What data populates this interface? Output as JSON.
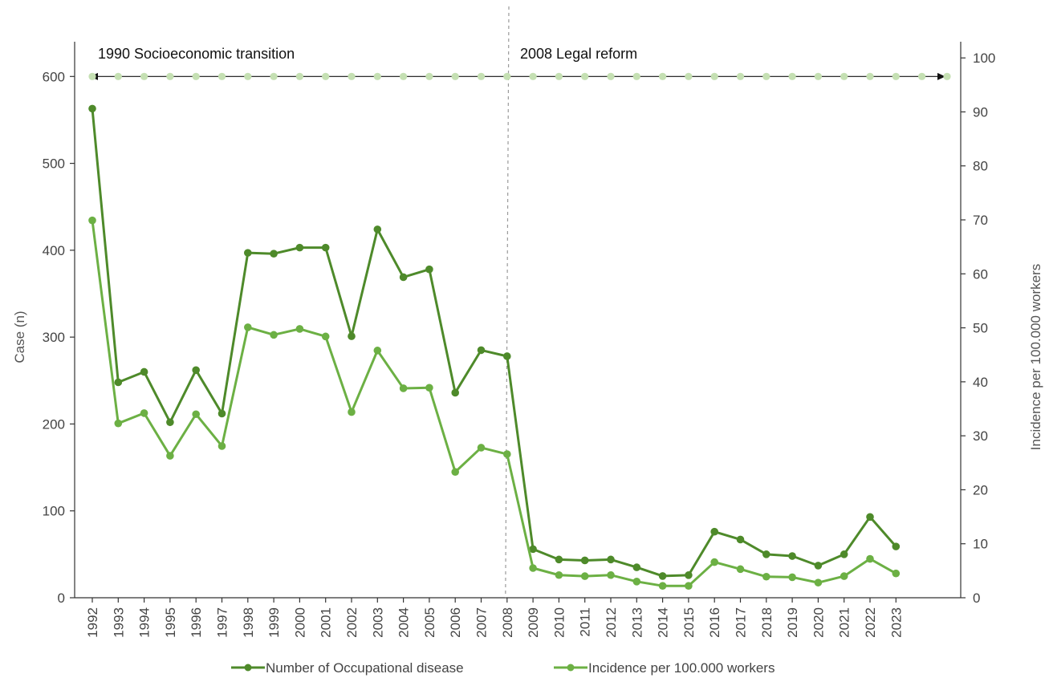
{
  "chart_data": {
    "type": "line",
    "x": [
      "1992",
      "1993",
      "1994",
      "1995",
      "1996",
      "1997",
      "1998",
      "1999",
      "2000",
      "2001",
      "2002",
      "2003",
      "2004",
      "2005",
      "2006",
      "2007",
      "2008",
      "2009",
      "2010",
      "2011",
      "2012",
      "2013",
      "2014",
      "2015",
      "2016",
      "2017",
      "2018",
      "2019",
      "2020",
      "2021",
      "2022",
      "2023"
    ],
    "series": [
      {
        "name": "Number of Occupational disease",
        "axis": "left",
        "color": "#4e8a2a",
        "values": [
          563,
          248,
          260,
          202,
          262,
          212,
          397,
          396,
          403,
          403,
          301,
          424,
          369,
          378,
          236,
          285,
          278,
          56,
          44,
          43,
          44,
          35,
          25,
          26,
          76,
          67,
          50,
          48,
          37,
          50,
          93,
          59
        ]
      },
      {
        "name": "Incidence per 100.000 workers",
        "axis": "right",
        "color": "#6cb044",
        "values": [
          69.9,
          32.3,
          34.2,
          26.3,
          34.0,
          28.1,
          50.1,
          48.7,
          49.8,
          48.4,
          34.4,
          45.8,
          38.8,
          38.9,
          23.3,
          27.8,
          26.6,
          5.5,
          4.2,
          4.0,
          4.2,
          3.0,
          2.2,
          2.2,
          6.6,
          5.3,
          3.9,
          3.8,
          2.8,
          4.0,
          7.2,
          4.5
        ]
      }
    ],
    "ylabel": "Case (n)",
    "ylim": [
      0,
      640
    ],
    "yticks": [
      "0",
      "100",
      "200",
      "300",
      "400",
      "500",
      "600"
    ],
    "y2label": "Incidence per 100.000 workers",
    "y2lim": [
      0,
      103
    ],
    "y2ticks": [
      "0",
      "10",
      "20",
      "30",
      "40",
      "50",
      "60",
      "70",
      "80",
      "90",
      "100"
    ],
    "annotations": [
      {
        "text": "1990 Socioeconomic transition",
        "color": "#111111"
      },
      {
        "text": "2008 Legal reform",
        "color": "#111111"
      }
    ],
    "timeline_dot_color": "#c5e0b3",
    "divider_after": "2008",
    "legend": "bottom",
    "grid": false
  }
}
